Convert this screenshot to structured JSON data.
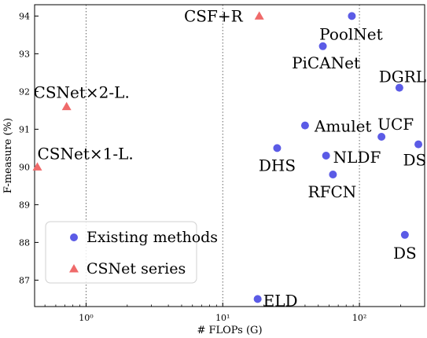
{
  "chart_data": {
    "type": "scatter",
    "xlabel": "# FLOPs (G)",
    "ylabel": "F-measure (%)",
    "xscale": "log",
    "xlim": [
      0.42,
      300
    ],
    "ylim": [
      86.3,
      94.3
    ],
    "xticks": [
      {
        "value": 1,
        "label": "10⁰"
      },
      {
        "value": 10,
        "label": "10¹"
      },
      {
        "value": 100,
        "label": "10²"
      }
    ],
    "yticks": [
      87,
      88,
      89,
      90,
      91,
      92,
      93,
      94
    ],
    "grid": "vertical dotted at major x ticks",
    "legend": {
      "placement": "bottom-left",
      "entries": [
        {
          "label": "Existing methods",
          "marker": "circle",
          "color": "#5b5be6"
        },
        {
          "label": "CSNet series",
          "marker": "triangle",
          "color": "#ef6a6a"
        }
      ]
    },
    "series": [
      {
        "marker": "circle",
        "color": "#5b5be6",
        "points": [
          {
            "label": "PoolNet",
            "x": 88,
            "y": 94.0
          },
          {
            "label": "PiCANet",
            "x": 54,
            "y": 93.2
          },
          {
            "label": "DGRL",
            "x": 196,
            "y": 92.1
          },
          {
            "label": "Amulet",
            "x": 40,
            "y": 91.1
          },
          {
            "label": "UCF",
            "x": 145,
            "y": 90.8
          },
          {
            "label": "DSS",
            "x": 270,
            "y": 90.6
          },
          {
            "label": "DHS",
            "x": 25,
            "y": 90.5
          },
          {
            "label": "NLDF",
            "x": 57,
            "y": 90.3
          },
          {
            "label": "RFCN",
            "x": 64,
            "y": 89.8
          },
          {
            "label": "DS",
            "x": 215,
            "y": 88.2
          },
          {
            "label": "ELD",
            "x": 18,
            "y": 86.5
          }
        ]
      },
      {
        "marker": "triangle",
        "color": "#ef6a6a",
        "points": [
          {
            "label": "CSF+R",
            "x": 18.5,
            "y": 94.0
          },
          {
            "label": "CSNet×2-L.",
            "x": 0.72,
            "y": 91.6
          },
          {
            "label": "CSNet×1-L.",
            "x": 0.44,
            "y": 90.0
          }
        ]
      }
    ]
  }
}
